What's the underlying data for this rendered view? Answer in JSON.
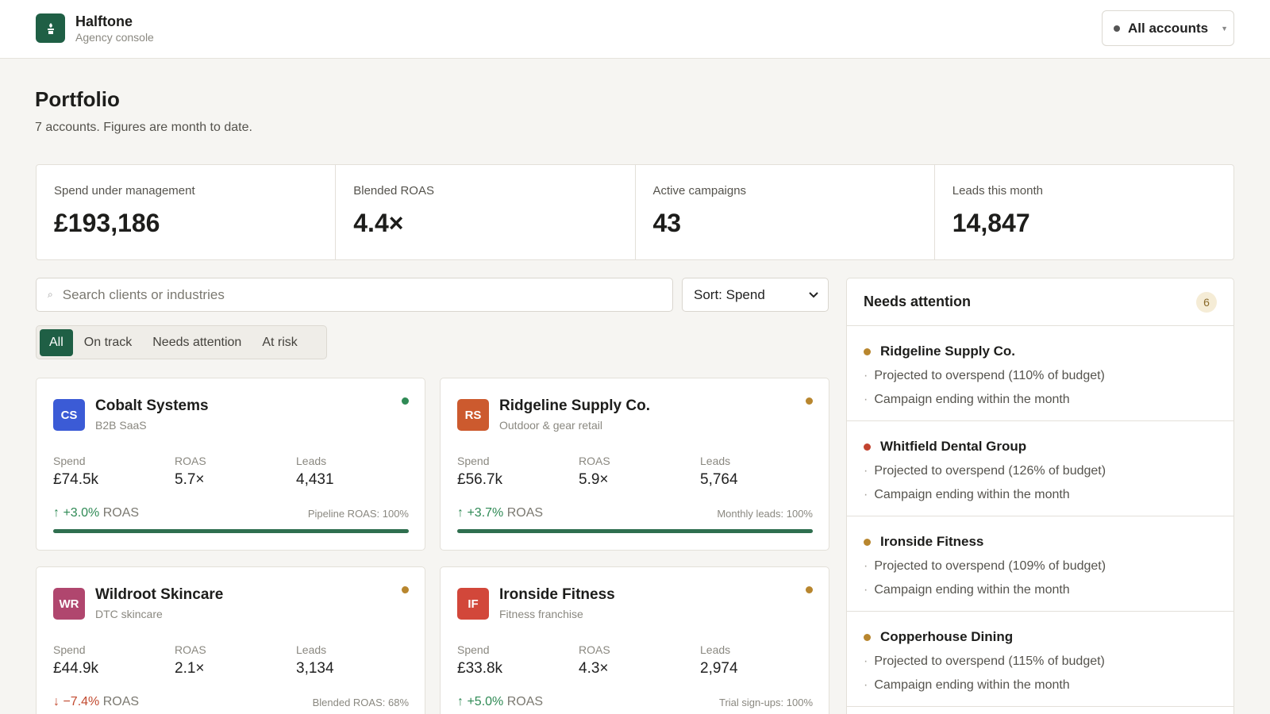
{
  "brand": {
    "name": "Halftone",
    "subtitle": "Agency console"
  },
  "account_switcher": {
    "label": "All accounts"
  },
  "page": {
    "title": "Portfolio",
    "subtitle": "7 accounts. Figures are month to date."
  },
  "kpis": [
    {
      "label": "Spend under management",
      "value": "£193,186"
    },
    {
      "label": "Blended ROAS",
      "value": "4.4×"
    },
    {
      "label": "Active campaigns",
      "value": "43"
    },
    {
      "label": "Leads this month",
      "value": "14,847"
    }
  ],
  "search": {
    "placeholder": "Search clients or industries",
    "value": ""
  },
  "sort": {
    "label": "Sort: Spend"
  },
  "filters": [
    "All",
    "On track",
    "Needs attention",
    "At risk"
  ],
  "active_filter": "All",
  "metric_labels": {
    "spend": "Spend",
    "roas": "ROAS",
    "leads": "Leads"
  },
  "cards": [
    {
      "initials": "CS",
      "name": "Cobalt Systems",
      "industry": "B2B SaaS",
      "avatar_color": "#3b5bd6",
      "status_color": "#2f8a55",
      "spend": "£74.5k",
      "roas": "5.7×",
      "leads": "4,431",
      "delta_arrow": "↑",
      "delta_value": "+3.0%",
      "delta_suffix": "ROAS",
      "delta_color": "#2f8a55",
      "goal": "Pipeline ROAS: 100%",
      "progress": 1.0,
      "bar_color": "#2f6f4f"
    },
    {
      "initials": "RS",
      "name": "Ridgeline Supply Co.",
      "industry": "Outdoor & gear retail",
      "avatar_color": "#cc5a2e",
      "status_color": "#b8862e",
      "spend": "£56.7k",
      "roas": "5.9×",
      "leads": "5,764",
      "delta_arrow": "↑",
      "delta_value": "+3.7%",
      "delta_suffix": "ROAS",
      "delta_color": "#2f8a55",
      "goal": "Monthly leads: 100%",
      "progress": 1.0,
      "bar_color": "#2f6f4f"
    },
    {
      "initials": "WR",
      "name": "Wildroot Skincare",
      "industry": "DTC skincare",
      "avatar_color": "#b0466e",
      "status_color": "#b8862e",
      "spend": "£44.9k",
      "roas": "2.1×",
      "leads": "3,134",
      "delta_arrow": "↓",
      "delta_value": "−7.4%",
      "delta_suffix": "ROAS",
      "delta_color": "#c24a2f",
      "goal": "Blended ROAS: 68%",
      "progress": 0.68,
      "bar_color": "#b0466e"
    },
    {
      "initials": "IF",
      "name": "Ironside Fitness",
      "industry": "Fitness franchise",
      "avatar_color": "#d2473a",
      "status_color": "#b8862e",
      "spend": "£33.8k",
      "roas": "4.3×",
      "leads": "2,974",
      "delta_arrow": "↑",
      "delta_value": "+5.0%",
      "delta_suffix": "ROAS",
      "delta_color": "#2f8a55",
      "goal": "Trial sign-ups: 100%",
      "progress": 1.0,
      "bar_color": "#2f6f4f"
    }
  ],
  "attention": {
    "title": "Needs attention",
    "count": "6",
    "items": [
      {
        "name": "Ridgeline Supply Co.",
        "dot_color": "#b8862e",
        "lines": [
          "Projected to overspend (110% of budget)",
          "Campaign ending within the month"
        ]
      },
      {
        "name": "Whitfield Dental Group",
        "dot_color": "#c2432f",
        "lines": [
          "Projected to overspend (126% of budget)",
          "Campaign ending within the month"
        ]
      },
      {
        "name": "Ironside Fitness",
        "dot_color": "#b8862e",
        "lines": [
          "Projected to overspend (109% of budget)",
          "Campaign ending within the month"
        ]
      },
      {
        "name": "Copperhouse Dining",
        "dot_color": "#b8862e",
        "lines": [
          "Projected to overspend (115% of budget)",
          "Campaign ending within the month"
        ]
      }
    ]
  },
  "icons": {
    "logo": "plant-icon",
    "search": "search-icon",
    "caret": "caret-down-icon",
    "chevron": "chevron-down-icon"
  }
}
